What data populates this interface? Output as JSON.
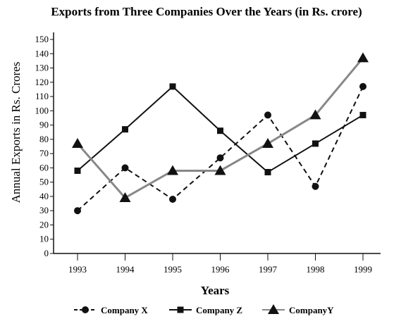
{
  "chart_data": {
    "type": "line",
    "title": "Exports from Three Companies Over the Years (in Rs. crore)",
    "xlabel": "Years",
    "ylabel": "Annual Exports in Rs. Crores",
    "categories": [
      "1993",
      "1994",
      "1995",
      "1996",
      "1997",
      "1998",
      "1999"
    ],
    "yticks": [
      0,
      10,
      20,
      30,
      40,
      50,
      60,
      70,
      80,
      90,
      100,
      110,
      120,
      130,
      140,
      150
    ],
    "ylim": [
      0,
      150
    ],
    "grid": false,
    "legend_position": "bottom",
    "series": [
      {
        "name": "Company X",
        "marker": "circle",
        "line_style": "dashed",
        "color": "#111111",
        "values": [
          30,
          60,
          38,
          67,
          97,
          47,
          117
        ]
      },
      {
        "name": "Company Z",
        "marker": "square",
        "line_style": "solid",
        "color": "#111111",
        "values": [
          58,
          87,
          117,
          86,
          57,
          77,
          97
        ]
      },
      {
        "name": "CompanyY",
        "marker": "triangle",
        "line_style": "solid",
        "color": "#888888",
        "values": [
          77,
          39,
          58,
          58,
          77,
          97,
          137
        ]
      }
    ]
  }
}
